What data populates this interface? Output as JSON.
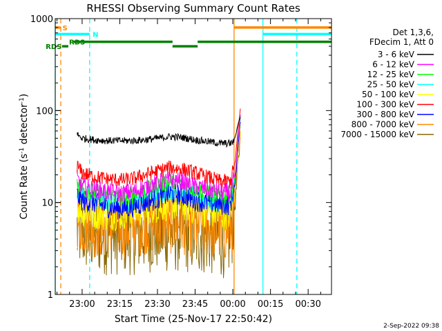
{
  "chart_data": {
    "type": "line",
    "title": "RHESSI Observing Summary Count Rates",
    "xlabel": "Start Time (25-Nov-17 22:50:42)",
    "ylabel_parts": [
      "Count Rate (s",
      "-1",
      " detector",
      "-1",
      ")"
    ],
    "yscale": "log",
    "ylim": [
      1,
      1000
    ],
    "xlim_minutes": [
      -10.7,
      99.3
    ],
    "x_ticks": [
      {
        "label": "23:00",
        "minutes": 0
      },
      {
        "label": "23:15",
        "minutes": 15
      },
      {
        "label": "23:30",
        "minutes": 30
      },
      {
        "label": "23:45",
        "minutes": 45
      },
      {
        "label": "00:00",
        "minutes": 60
      },
      {
        "label": "00:15",
        "minutes": 75
      },
      {
        "label": "00:30",
        "minutes": 90
      }
    ],
    "y_ticks": [
      {
        "label": "1",
        "value": 1
      },
      {
        "label": "10",
        "value": 10
      },
      {
        "label": "100",
        "value": 100
      },
      {
        "label": "1000",
        "value": 1000
      }
    ],
    "legend_header": [
      "Det 1,3,6,",
      "FDecim 1, Att 0"
    ],
    "legend_position": "right",
    "series": [
      {
        "name": "3 - 6 keV",
        "color": "#000000",
        "points": [
          [
            -2,
            55
          ],
          [
            0,
            50
          ],
          [
            5,
            48
          ],
          [
            10,
            47
          ],
          [
            15,
            47
          ],
          [
            20,
            47
          ],
          [
            25,
            48
          ],
          [
            30,
            50
          ],
          [
            35,
            52
          ],
          [
            40,
            51
          ],
          [
            45,
            48
          ],
          [
            50,
            46
          ],
          [
            55,
            44
          ],
          [
            59,
            44
          ],
          [
            60,
            45
          ],
          [
            61,
            52
          ],
          [
            62,
            70
          ],
          [
            63,
            85
          ]
        ]
      },
      {
        "name": "6 - 12 keV",
        "color": "#ff00ff",
        "points": [
          [
            -2,
            18
          ],
          [
            0,
            15
          ],
          [
            5,
            14
          ],
          [
            10,
            13
          ],
          [
            15,
            12.5
          ],
          [
            20,
            13
          ],
          [
            25,
            14.5
          ],
          [
            30,
            16.5
          ],
          [
            35,
            17.5
          ],
          [
            40,
            17
          ],
          [
            45,
            15
          ],
          [
            50,
            14
          ],
          [
            55,
            13
          ],
          [
            59,
            13
          ],
          [
            61,
            20
          ],
          [
            62,
            45
          ],
          [
            63,
            90
          ]
        ]
      },
      {
        "name": "12 - 25 keV",
        "color": "#00ff00",
        "points": [
          [
            -2,
            17
          ],
          [
            0,
            14
          ],
          [
            5,
            13
          ],
          [
            10,
            12
          ],
          [
            15,
            11.5
          ],
          [
            20,
            12
          ],
          [
            25,
            13.5
          ],
          [
            30,
            15.5
          ],
          [
            35,
            17
          ],
          [
            40,
            16
          ],
          [
            45,
            14
          ],
          [
            50,
            13
          ],
          [
            55,
            12
          ],
          [
            59,
            12
          ],
          [
            61,
            20
          ],
          [
            62,
            45
          ],
          [
            63,
            85
          ]
        ]
      },
      {
        "name": "25 - 50 keV",
        "color": "#00ffff",
        "points": [
          [
            -2,
            14
          ],
          [
            0,
            12
          ],
          [
            5,
            11
          ],
          [
            10,
            10
          ],
          [
            15,
            10
          ],
          [
            20,
            10.5
          ],
          [
            25,
            11.5
          ],
          [
            30,
            12.5
          ],
          [
            35,
            14
          ],
          [
            40,
            13
          ],
          [
            45,
            11.5
          ],
          [
            50,
            10.5
          ],
          [
            55,
            10
          ],
          [
            59,
            10
          ],
          [
            61,
            18
          ],
          [
            62,
            40
          ],
          [
            63,
            80
          ]
        ]
      },
      {
        "name": "50 - 100 keV",
        "color": "#ffff00",
        "points": [
          [
            -2,
            9
          ],
          [
            0,
            8
          ],
          [
            5,
            7.5
          ],
          [
            10,
            7.5
          ],
          [
            15,
            7.5
          ],
          [
            20,
            8
          ],
          [
            25,
            8.5
          ],
          [
            30,
            9
          ],
          [
            35,
            9.5
          ],
          [
            40,
            9.5
          ],
          [
            45,
            8.5
          ],
          [
            50,
            8
          ],
          [
            55,
            7.5
          ],
          [
            59,
            7.5
          ],
          [
            61,
            15
          ],
          [
            62,
            35
          ],
          [
            63,
            70
          ]
        ]
      },
      {
        "name": "100 - 300 keV",
        "color": "#ff0000",
        "points": [
          [
            -2,
            25
          ],
          [
            0,
            21
          ],
          [
            5,
            19
          ],
          [
            10,
            18
          ],
          [
            15,
            17.5
          ],
          [
            20,
            18
          ],
          [
            25,
            20
          ],
          [
            30,
            22
          ],
          [
            35,
            24
          ],
          [
            40,
            23
          ],
          [
            45,
            21
          ],
          [
            50,
            19
          ],
          [
            55,
            17
          ],
          [
            59,
            17
          ],
          [
            61,
            28
          ],
          [
            62,
            60
          ],
          [
            63,
            105
          ]
        ]
      },
      {
        "name": "300 - 800 keV",
        "color": "#0000ff",
        "points": [
          [
            -2,
            12
          ],
          [
            0,
            10.5
          ],
          [
            5,
            10
          ],
          [
            10,
            9
          ],
          [
            15,
            8.5
          ],
          [
            20,
            9
          ],
          [
            25,
            10
          ],
          [
            30,
            11
          ],
          [
            35,
            12.5
          ],
          [
            40,
            12
          ],
          [
            45,
            10.5
          ],
          [
            50,
            10
          ],
          [
            55,
            9.5
          ],
          [
            59,
            9.5
          ],
          [
            61,
            16
          ],
          [
            62,
            40
          ],
          [
            63,
            75
          ]
        ]
      },
      {
        "name": "800 - 7000 keV",
        "color": "#ff8800",
        "points": [
          [
            -2,
            6.5
          ],
          [
            0,
            6
          ],
          [
            5,
            5.5
          ],
          [
            10,
            5.5
          ],
          [
            15,
            5.5
          ],
          [
            20,
            5.5
          ],
          [
            25,
            6
          ],
          [
            30,
            6
          ],
          [
            35,
            6
          ],
          [
            40,
            6
          ],
          [
            45,
            5.5
          ],
          [
            50,
            5.5
          ],
          [
            55,
            5
          ],
          [
            59,
            5
          ],
          [
            60,
            6
          ],
          [
            61,
            12
          ],
          [
            62,
            30
          ],
          [
            63,
            60
          ]
        ]
      },
      {
        "name": "7000 - 15000 keV",
        "color": "#886600",
        "points": [
          [
            -2,
            5
          ],
          [
            0,
            4.8
          ],
          [
            5,
            4.5
          ],
          [
            10,
            4.5
          ],
          [
            15,
            4.5
          ],
          [
            20,
            4.5
          ],
          [
            25,
            4.8
          ],
          [
            30,
            4.8
          ],
          [
            35,
            4.8
          ],
          [
            40,
            4.8
          ],
          [
            45,
            4.5
          ],
          [
            50,
            4.5
          ],
          [
            55,
            4.2
          ],
          [
            59,
            4.2
          ],
          [
            61,
            10
          ],
          [
            62,
            25
          ],
          [
            63,
            50
          ]
        ]
      }
    ],
    "annotations": {
      "flags": [
        {
          "label": "S",
          "color": "#ff8800",
          "start": -10.7,
          "end": -8.5,
          "y": 800,
          "label_minutes": -7.8
        },
        {
          "label": "S",
          "color": "#ff8800",
          "start": 60.5,
          "end": 99.3,
          "y": 800
        },
        {
          "label": "N",
          "color": "#00ffff",
          "start": -10.7,
          "end": 3.0,
          "y": 680,
          "label_minutes": 4.2
        },
        {
          "label": "N",
          "color": "#00ffff",
          "start": 72.0,
          "end": 99.3,
          "y": 680
        },
        {
          "label": "RDS",
          "color": "#008000",
          "start": -8.0,
          "end": -5.5,
          "y": 500,
          "label_minutes": -14.5
        },
        {
          "label": "RDS",
          "color": "#008000",
          "start": -3.5,
          "end": 36.0,
          "y": 560,
          "label_minutes": -5.2
        },
        {
          "label": "RDS",
          "color": "#008000",
          "start": 36.0,
          "end": 46.0,
          "y": 500
        },
        {
          "label": "RDS",
          "color": "#008000",
          "start": 46.0,
          "end": 99.3,
          "y": 560
        }
      ],
      "vlines": [
        {
          "minutes": -10.7,
          "color": "#00ffff",
          "dashed": false
        },
        {
          "minutes": -8.5,
          "color": "#ff8800",
          "dashed": true
        },
        {
          "minutes": 3.0,
          "color": "#00ffff",
          "dashed": true
        },
        {
          "minutes": 60.5,
          "color": "#ff8800",
          "dashed": false
        },
        {
          "minutes": 72.0,
          "color": "#00ffff",
          "dashed": false
        },
        {
          "minutes": 85.5,
          "color": "#00ffff",
          "dashed": true
        }
      ]
    }
  },
  "footer": {
    "timestamp": "2-Sep-2022 09:38"
  }
}
